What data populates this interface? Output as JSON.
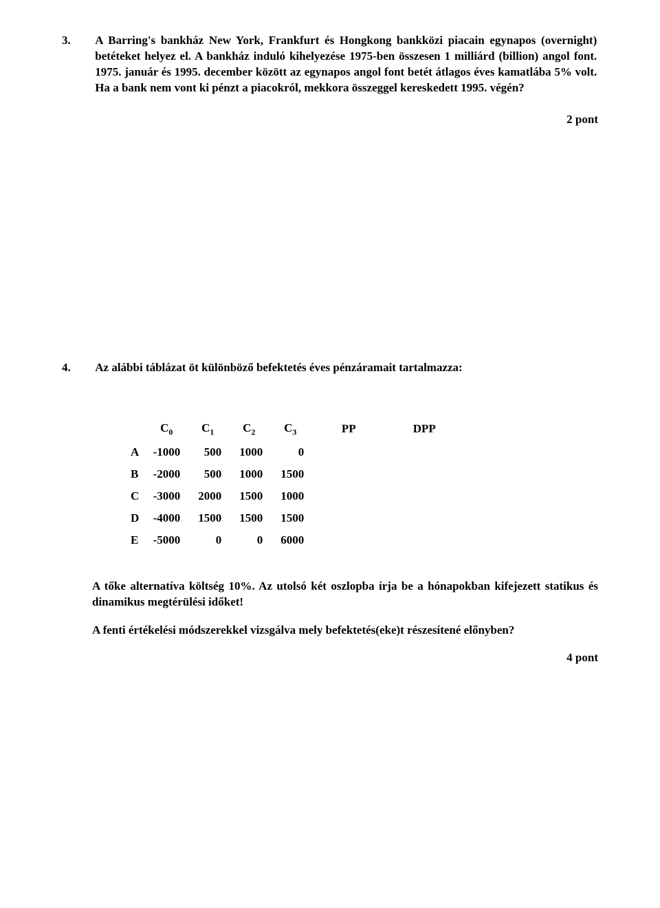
{
  "q3": {
    "number": "3.",
    "text": "A Barring's bankház New York, Frankfurt és Hongkong bankközi piacain egynapos (overnight) betéteket helyez el. A bankház induló kihelyezése 1975-ben összesen 1 milliárd (billion) angol font. 1975. január és 1995. december között az egynapos angol font betét átlagos éves kamatlába 5% volt. Ha a bank nem vont ki pénzt a piacokról, mekkora összeggel kereskedett 1995. végén?",
    "points": "2 pont"
  },
  "q4": {
    "number": "4.",
    "intro": "Az alábbi táblázat öt különböző befektetés éves pénzáramait tartalmazza:",
    "headers": {
      "c0": "C",
      "c1": "C",
      "c2": "C",
      "c3": "C",
      "pp": "PP",
      "dpp": "DPP"
    },
    "subs": {
      "s0": "0",
      "s1": "1",
      "s2": "2",
      "s3": "3"
    },
    "rows": [
      {
        "label": "A",
        "v0": "-1000",
        "v1": "500",
        "v2": "1000",
        "v3": "0"
      },
      {
        "label": "B",
        "v0": "-2000",
        "v1": "500",
        "v2": "1000",
        "v3": "1500"
      },
      {
        "label": "C",
        "v0": "-3000",
        "v1": "2000",
        "v2": "1500",
        "v3": "1000"
      },
      {
        "label": "D",
        "v0": "-4000",
        "v1": "1500",
        "v2": "1500",
        "v3": "1500"
      },
      {
        "label": "E",
        "v0": "-5000",
        "v1": "0",
        "v2": "0",
        "v3": "6000"
      }
    ],
    "para1": "A tőke alternatíva költség 10%. Az utolsó két oszlopba írja be a hónapokban kifejezett statikus és dinamikus megtérülési időket!",
    "para2": "A fenti értékelési módszerekkel vizsgálva mely befektetés(eke)t részesítené előnyben?",
    "points": "4 pont"
  }
}
